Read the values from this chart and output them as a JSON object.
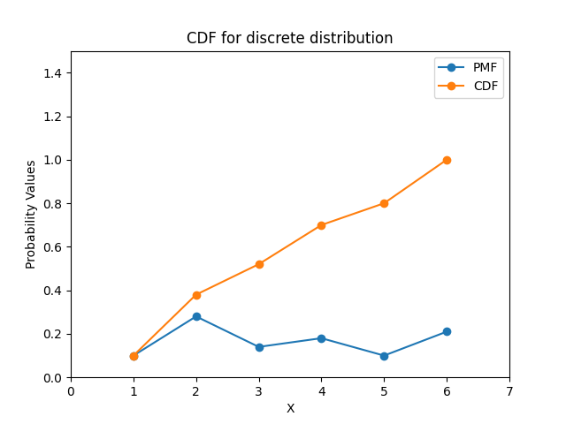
{
  "title": "CDF for discrete distribution",
  "xlabel": "X",
  "ylabel": "Probability Values",
  "x": [
    1,
    2,
    3,
    4,
    5,
    6
  ],
  "pmf": [
    0.1,
    0.28,
    0.14,
    0.18,
    0.1,
    0.21
  ],
  "cdf": [
    0.1,
    0.38,
    0.52,
    0.7,
    0.8,
    1.0
  ],
  "pmf_color": "#1f77b4",
  "cdf_color": "#ff7f0e",
  "pmf_label": "PMF",
  "cdf_label": "CDF",
  "xlim": [
    0,
    7
  ],
  "ylim": [
    0,
    1.5
  ],
  "marker": "o",
  "figsize": [
    6.4,
    4.8
  ],
  "dpi": 100
}
